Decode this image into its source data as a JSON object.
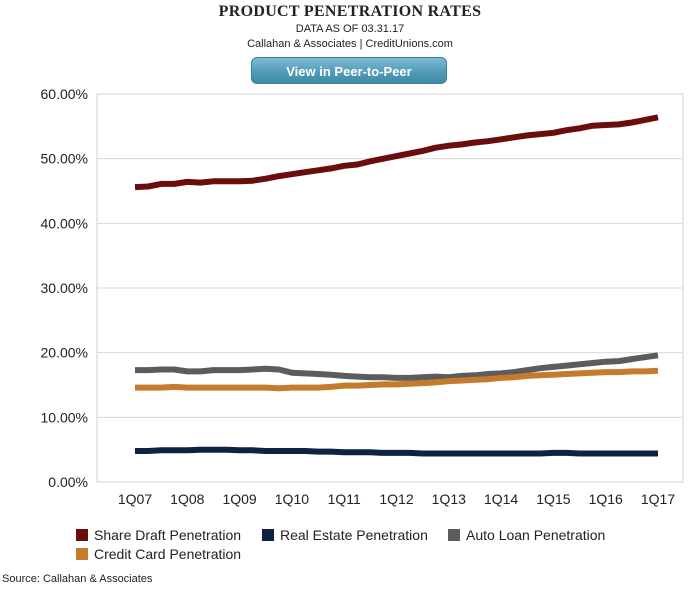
{
  "header": {
    "title": "PRODUCT PENETRATION RATES",
    "subtitle": "DATA AS OF 03.31.17",
    "credit": "Callahan & Associates | CreditUnions.com",
    "button_label": "View in Peer-to-Peer"
  },
  "source": "Source: Callahan & Associates",
  "chart_data": {
    "type": "line",
    "title": "PRODUCT PENETRATION RATES",
    "xlabel": "",
    "ylabel": "",
    "ylim": [
      0,
      60
    ],
    "yticks": [
      "0.00%",
      "10.00%",
      "20.00%",
      "30.00%",
      "40.00%",
      "50.00%",
      "60.00%"
    ],
    "grid": "horizontal",
    "legend_position": "bottom",
    "x_tick_labels": [
      "1Q07",
      "1Q08",
      "1Q09",
      "1Q10",
      "1Q11",
      "1Q12",
      "1Q13",
      "1Q14",
      "1Q15",
      "1Q16",
      "1Q17"
    ],
    "x": [
      "1Q07",
      "2Q07",
      "3Q07",
      "4Q07",
      "1Q08",
      "2Q08",
      "3Q08",
      "4Q08",
      "1Q09",
      "2Q09",
      "3Q09",
      "4Q09",
      "1Q10",
      "2Q10",
      "3Q10",
      "4Q10",
      "1Q11",
      "2Q11",
      "3Q11",
      "4Q11",
      "1Q12",
      "2Q12",
      "3Q12",
      "4Q12",
      "1Q13",
      "2Q13",
      "3Q13",
      "4Q13",
      "1Q14",
      "2Q14",
      "3Q14",
      "4Q14",
      "1Q15",
      "2Q15",
      "3Q15",
      "4Q15",
      "1Q16",
      "2Q16",
      "3Q16",
      "4Q16",
      "1Q17"
    ],
    "series": [
      {
        "name": "Share Draft Penetration",
        "color": "#6b0d0d",
        "values": [
          45.6,
          45.7,
          46.1,
          46.1,
          46.4,
          46.3,
          46.5,
          46.5,
          46.5,
          46.6,
          46.9,
          47.3,
          47.6,
          47.9,
          48.2,
          48.5,
          48.9,
          49.1,
          49.6,
          50.0,
          50.4,
          50.8,
          51.2,
          51.7,
          52.0,
          52.2,
          52.5,
          52.7,
          53.0,
          53.3,
          53.6,
          53.8,
          54.0,
          54.4,
          54.7,
          55.1,
          55.2,
          55.3,
          55.6,
          56.0,
          56.4
        ]
      },
      {
        "name": "Real Estate Penetration",
        "color": "#0f2340",
        "values": [
          4.8,
          4.8,
          4.9,
          4.9,
          4.9,
          5.0,
          5.0,
          5.0,
          4.9,
          4.9,
          4.8,
          4.8,
          4.8,
          4.8,
          4.7,
          4.7,
          4.6,
          4.6,
          4.6,
          4.5,
          4.5,
          4.5,
          4.4,
          4.4,
          4.4,
          4.4,
          4.4,
          4.4,
          4.4,
          4.4,
          4.4,
          4.4,
          4.5,
          4.5,
          4.4,
          4.4,
          4.4,
          4.4,
          4.4,
          4.4,
          4.4
        ]
      },
      {
        "name": "Auto Loan Penetration",
        "color": "#5c5c5c",
        "values": [
          17.3,
          17.3,
          17.4,
          17.4,
          17.1,
          17.1,
          17.3,
          17.3,
          17.3,
          17.4,
          17.5,
          17.4,
          16.9,
          16.8,
          16.7,
          16.6,
          16.4,
          16.3,
          16.2,
          16.2,
          16.1,
          16.1,
          16.2,
          16.3,
          16.2,
          16.4,
          16.5,
          16.7,
          16.8,
          17.0,
          17.3,
          17.6,
          17.8,
          18.0,
          18.2,
          18.4,
          18.6,
          18.7,
          19.0,
          19.3,
          19.6
        ]
      },
      {
        "name": "Credit Card Penetration",
        "color": "#c47b2c",
        "values": [
          14.6,
          14.6,
          14.6,
          14.7,
          14.6,
          14.6,
          14.6,
          14.6,
          14.6,
          14.6,
          14.6,
          14.5,
          14.6,
          14.6,
          14.6,
          14.7,
          14.9,
          14.9,
          15.0,
          15.1,
          15.1,
          15.2,
          15.3,
          15.4,
          15.6,
          15.7,
          15.8,
          15.9,
          16.1,
          16.2,
          16.4,
          16.5,
          16.6,
          16.7,
          16.8,
          16.9,
          17.0,
          17.0,
          17.1,
          17.1,
          17.2
        ]
      }
    ]
  }
}
